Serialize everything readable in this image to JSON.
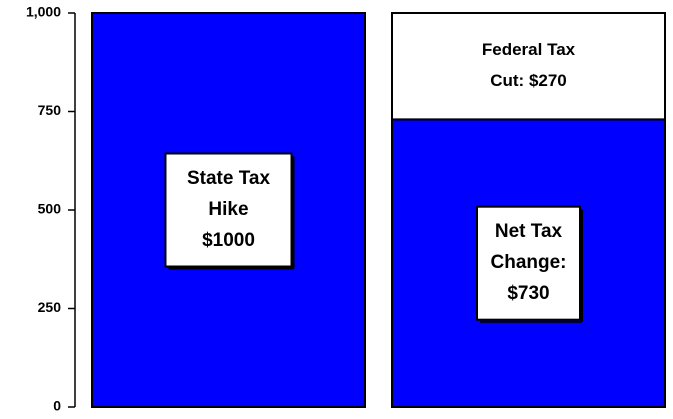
{
  "chart_data": {
    "type": "bar",
    "stacked": true,
    "categories": [
      null,
      null
    ],
    "series": [
      {
        "color": "#0000ff",
        "values": [
          1000,
          730
        ]
      },
      {
        "color": "#ffffff",
        "values": [
          null,
          270
        ]
      }
    ],
    "annotations": [
      [
        "State Tax",
        "Hike",
        "$1000"
      ],
      [
        "Net Tax",
        "Change:",
        "$730"
      ],
      [
        "Federal Tax",
        "Cut: $270"
      ]
    ],
    "ylim": [
      0,
      1000
    ],
    "yticks": [
      0,
      250,
      500,
      750,
      {
        "value": 1000,
        "label": "1,000"
      }
    ],
    "grid": false
  }
}
